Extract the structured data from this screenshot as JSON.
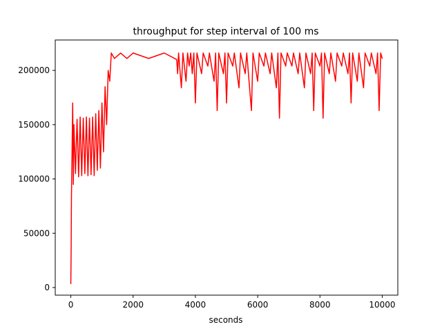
{
  "chart_data": {
    "type": "line",
    "title": "throughput for step interval of 100 ms",
    "xlabel": "seconds",
    "ylabel": "",
    "xlim": [
      -500,
      10500
    ],
    "ylim": [
      -7000,
      228000
    ],
    "xticks": [
      0,
      2000,
      4000,
      6000,
      8000,
      10000
    ],
    "xtick_labels": [
      "0",
      "2000",
      "4000",
      "6000",
      "8000",
      "10000"
    ],
    "yticks": [
      0,
      50000,
      100000,
      150000,
      200000
    ],
    "ytick_labels": [
      "0",
      "50000",
      "100000",
      "150000",
      "200000"
    ],
    "grid": false,
    "legend": "none",
    "series": [
      {
        "color": "#ff0000",
        "points": [
          [
            0,
            3500
          ],
          [
            10,
            34000
          ],
          [
            20,
            82000
          ],
          [
            40,
            125000
          ],
          [
            60,
            170000
          ],
          [
            80,
            95000
          ],
          [
            100,
            150000
          ],
          [
            150,
            105000
          ],
          [
            200,
            155000
          ],
          [
            250,
            102000
          ],
          [
            300,
            157000
          ],
          [
            350,
            103000
          ],
          [
            400,
            156000
          ],
          [
            450,
            105000
          ],
          [
            500,
            157000
          ],
          [
            550,
            103000
          ],
          [
            600,
            156000
          ],
          [
            650,
            104000
          ],
          [
            700,
            157000
          ],
          [
            750,
            103000
          ],
          [
            800,
            160000
          ],
          [
            850,
            108000
          ],
          [
            900,
            163000
          ],
          [
            950,
            110000
          ],
          [
            1000,
            170000
          ],
          [
            1050,
            125000
          ],
          [
            1100,
            185000
          ],
          [
            1150,
            150000
          ],
          [
            1200,
            200000
          ],
          [
            1250,
            190000
          ],
          [
            1300,
            216000
          ],
          [
            1400,
            211000
          ],
          [
            1600,
            216000
          ],
          [
            1800,
            211000
          ],
          [
            2000,
            216000
          ],
          [
            2500,
            211000
          ],
          [
            3000,
            216000
          ],
          [
            3400,
            210000
          ],
          [
            3430,
            197000
          ],
          [
            3460,
            216000
          ],
          [
            3550,
            184000
          ],
          [
            3600,
            216000
          ],
          [
            3700,
            190000
          ],
          [
            3750,
            216000
          ],
          [
            3800,
            204000
          ],
          [
            3850,
            216000
          ],
          [
            3900,
            197000
          ],
          [
            3950,
            216000
          ],
          [
            4000,
            170000
          ],
          [
            4050,
            216000
          ],
          [
            4200,
            197000
          ],
          [
            4250,
            216000
          ],
          [
            4400,
            204000
          ],
          [
            4450,
            216000
          ],
          [
            4600,
            190000
          ],
          [
            4650,
            216000
          ],
          [
            4700,
            163000
          ],
          [
            4750,
            216000
          ],
          [
            4900,
            197000
          ],
          [
            4950,
            216000
          ],
          [
            5000,
            170000
          ],
          [
            5050,
            216000
          ],
          [
            5200,
            204000
          ],
          [
            5250,
            216000
          ],
          [
            5400,
            184000
          ],
          [
            5450,
            216000
          ],
          [
            5600,
            197000
          ],
          [
            5650,
            216000
          ],
          [
            5800,
            163000
          ],
          [
            5850,
            216000
          ],
          [
            6000,
            190000
          ],
          [
            6050,
            216000
          ],
          [
            6200,
            204000
          ],
          [
            6250,
            216000
          ],
          [
            6400,
            197000
          ],
          [
            6450,
            216000
          ],
          [
            6600,
            184000
          ],
          [
            6650,
            216000
          ],
          [
            6700,
            156000
          ],
          [
            6750,
            216000
          ],
          [
            6900,
            204000
          ],
          [
            6950,
            216000
          ],
          [
            7100,
            204000
          ],
          [
            7150,
            216000
          ],
          [
            7300,
            197000
          ],
          [
            7350,
            216000
          ],
          [
            7500,
            184000
          ],
          [
            7550,
            216000
          ],
          [
            7700,
            197000
          ],
          [
            7750,
            216000
          ],
          [
            7800,
            163000
          ],
          [
            7850,
            216000
          ],
          [
            8000,
            204000
          ],
          [
            8050,
            216000
          ],
          [
            8100,
            156000
          ],
          [
            8150,
            216000
          ],
          [
            8300,
            197000
          ],
          [
            8350,
            216000
          ],
          [
            8500,
            190000
          ],
          [
            8550,
            216000
          ],
          [
            8700,
            204000
          ],
          [
            8750,
            216000
          ],
          [
            8900,
            197000
          ],
          [
            8950,
            216000
          ],
          [
            9000,
            170000
          ],
          [
            9050,
            216000
          ],
          [
            9200,
            190000
          ],
          [
            9250,
            216000
          ],
          [
            9400,
            184000
          ],
          [
            9450,
            216000
          ],
          [
            9600,
            204000
          ],
          [
            9650,
            216000
          ],
          [
            9800,
            197000
          ],
          [
            9850,
            216000
          ],
          [
            9900,
            163000
          ],
          [
            9950,
            216000
          ],
          [
            10000,
            211000
          ]
        ]
      }
    ]
  }
}
